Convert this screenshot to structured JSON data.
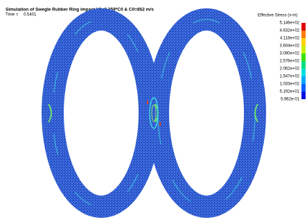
{
  "header": {
    "title": "Simulation of Swegle Rubber Ring impact V0=0.359*C0 & C0=852 m/s",
    "time_label": "Time =",
    "time_value": "0.5401"
  },
  "legend": {
    "title": "Effective Stress (v-m)",
    "labels": [
      "5.146e+02",
      "4.632e+02",
      "4.118e+02",
      "3.604e+02",
      "3.090e+02",
      "2.576e+02",
      "2.062e+02",
      "1.547e+02",
      "1.033e+02",
      "5.192e+01",
      "5.962e-01"
    ]
  }
}
